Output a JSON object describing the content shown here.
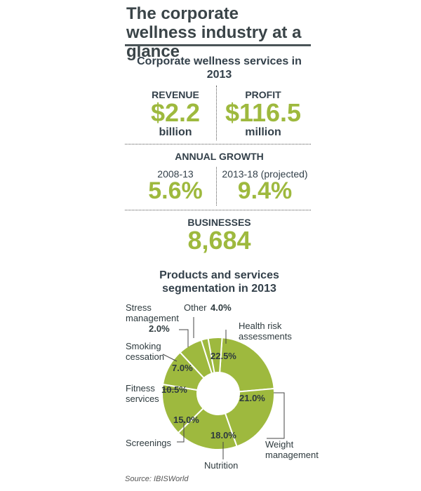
{
  "title": "The corporate wellness industry at a glance",
  "services_heading": "Corporate wellness services in 2013",
  "revenue": {
    "label": "REVENUE",
    "value": "$2.2",
    "unit": "billion"
  },
  "profit": {
    "label": "PROFIT",
    "value": "$116.5",
    "unit": "million"
  },
  "growth": {
    "heading": "ANNUAL GROWTH",
    "period1_label": "2008-13",
    "period1_value": "5.6%",
    "period2_label": "2013-18 (projected)",
    "period2_value": "9.4%"
  },
  "businesses": {
    "label": "BUSINESSES",
    "value": "8,684"
  },
  "segmentation_heading": "Products and services segmentation in 2013",
  "source": "Source: IBISWorld",
  "colors": {
    "accent": "#9eb93e",
    "text": "#33404a",
    "segment_stroke": "#ffffff"
  },
  "chart_data": {
    "type": "pie",
    "title": "Products and services segmentation in 2013",
    "donut": true,
    "slices": [
      {
        "label": "Health risk assessments",
        "value": 22.5,
        "display": "22.5%"
      },
      {
        "label": "Weight management",
        "value": 21.0,
        "display": "21.0%"
      },
      {
        "label": "Nutrition",
        "value": 18.0,
        "display": "18.0%"
      },
      {
        "label": "Screenings",
        "value": 15.0,
        "display": "15.0%"
      },
      {
        "label": "Fitness services",
        "value": 10.5,
        "display": "10.5%"
      },
      {
        "label": "Smoking cessation",
        "value": 7.0,
        "display": "7.0%"
      },
      {
        "label": "Stress management",
        "value": 2.0,
        "display": "2.0%"
      },
      {
        "label": "Other",
        "value": 4.0,
        "display": "4.0%"
      }
    ]
  }
}
